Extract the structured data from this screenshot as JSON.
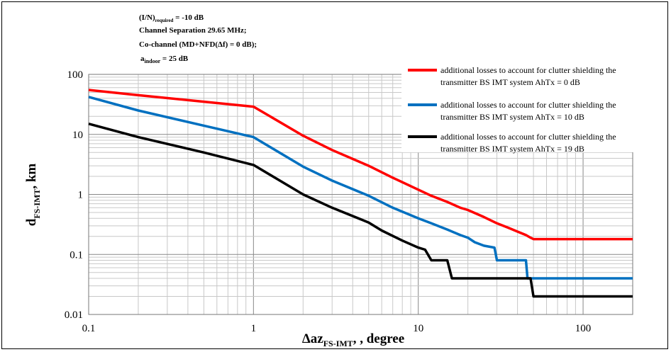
{
  "chart_data": {
    "type": "line",
    "x_scale": "log",
    "y_scale": "log",
    "xlim": [
      0.1,
      200
    ],
    "ylim": [
      0.01,
      100
    ],
    "grid": true,
    "legend_position": "top-right",
    "xlabel": {
      "main": "Δaz",
      "sub": "FS-IMT",
      "rest": ", , degree"
    },
    "ylabel": {
      "main": "d",
      "sub": "FS-IMT",
      "rest": ", km"
    },
    "x_ticks": [
      {
        "value": 0.1,
        "label": "0.1"
      },
      {
        "value": 1,
        "label": "1"
      },
      {
        "value": 10,
        "label": "10"
      },
      {
        "value": 100,
        "label": "100"
      }
    ],
    "y_ticks": [
      {
        "value": 100,
        "label": "100"
      },
      {
        "value": 10,
        "label": "10"
      },
      {
        "value": 1,
        "label": "1"
      },
      {
        "value": 0.1,
        "label": "0.1"
      },
      {
        "value": 0.01,
        "label": "0.01"
      }
    ],
    "annotations": {
      "line1": {
        "main": "(I/N)",
        "sub": "required",
        "rest": " = -10 dB"
      },
      "line2": "Channel Separation 29.65  MHz;",
      "line3": "Co-channel (MD+NFD(Δf) = 0 dB);",
      "line4": {
        "main": "a",
        "sub": "indoor",
        "rest": " = 25 dB"
      }
    },
    "series": [
      {
        "name": "additional losses to account for clutter shielding the transmitter BS IMT system AhTx = 0 dB",
        "legend_lines": [
          "additional losses to account for clutter shielding the",
          "transmitter BS IMT system AhTx = 0 dB"
        ],
        "color": "#ff0000",
        "points": [
          [
            0.1,
            55
          ],
          [
            0.2,
            45
          ],
          [
            0.5,
            35
          ],
          [
            1,
            29
          ],
          [
            2,
            9.5
          ],
          [
            3,
            5.5
          ],
          [
            5,
            3
          ],
          [
            7,
            1.9
          ],
          [
            10,
            1.2
          ],
          [
            12,
            0.95
          ],
          [
            15,
            0.75
          ],
          [
            18,
            0.6
          ],
          [
            20,
            0.55
          ],
          [
            25,
            0.42
          ],
          [
            30,
            0.33
          ],
          [
            35,
            0.28
          ],
          [
            40,
            0.24
          ],
          [
            45,
            0.21
          ],
          [
            48,
            0.19
          ],
          [
            50,
            0.18
          ],
          [
            200,
            0.18
          ]
        ]
      },
      {
        "name": "additional losses to account for clutter shielding the transmitter BS IMT system AhTx = 10 dB",
        "legend_lines": [
          "additional losses to account for clutter shielding the",
          "transmitter BS IMT system AhTx = 10 dB"
        ],
        "color": "#0070c0",
        "points": [
          [
            0.1,
            42
          ],
          [
            0.2,
            25
          ],
          [
            0.5,
            14
          ],
          [
            1,
            9
          ],
          [
            2,
            2.9
          ],
          [
            3,
            1.7
          ],
          [
            5,
            0.95
          ],
          [
            7,
            0.6
          ],
          [
            10,
            0.4
          ],
          [
            12,
            0.33
          ],
          [
            15,
            0.26
          ],
          [
            18,
            0.21
          ],
          [
            20,
            0.19
          ],
          [
            22,
            0.16
          ],
          [
            25,
            0.14
          ],
          [
            29,
            0.13
          ],
          [
            30,
            0.08
          ],
          [
            45,
            0.08
          ],
          [
            46,
            0.04
          ],
          [
            200,
            0.04
          ]
        ]
      },
      {
        "name": "additional losses to account for clutter shielding the transmitter BS IMT system AhTx = 19 dB",
        "legend_lines": [
          "additional losses to account for clutter shielding the",
          "transmitter BS IMT system AhTx = 19 dB"
        ],
        "color": "#000000",
        "points": [
          [
            0.1,
            15
          ],
          [
            0.2,
            9
          ],
          [
            0.5,
            5
          ],
          [
            1,
            3.1
          ],
          [
            2,
            1
          ],
          [
            3,
            0.6
          ],
          [
            5,
            0.34
          ],
          [
            6,
            0.25
          ],
          [
            8,
            0.17
          ],
          [
            10,
            0.13
          ],
          [
            11,
            0.12
          ],
          [
            12,
            0.08
          ],
          [
            15,
            0.08
          ],
          [
            16,
            0.04
          ],
          [
            17,
            0.04
          ],
          [
            19,
            0.04
          ],
          [
            20,
            0.04
          ],
          [
            45,
            0.04
          ],
          [
            48,
            0.04
          ],
          [
            50,
            0.02
          ],
          [
            200,
            0.02
          ]
        ]
      }
    ]
  }
}
